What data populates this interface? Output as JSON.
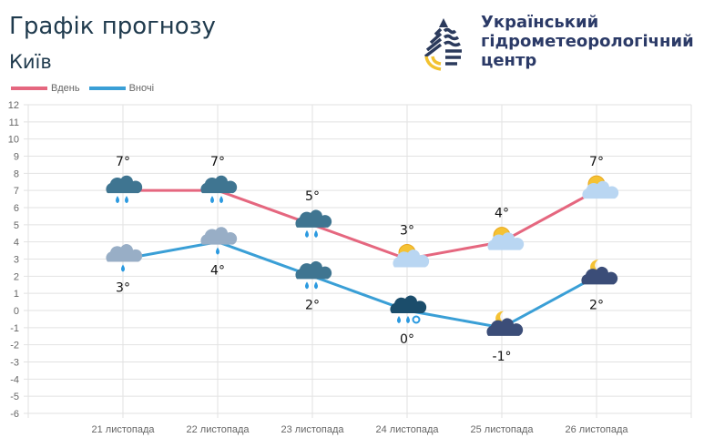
{
  "header": {
    "title": "Графік прогнозу",
    "city": "Київ",
    "org_lines": [
      "Український",
      "гідрометеорологічний",
      "центр"
    ]
  },
  "colors": {
    "day": "#e5677f",
    "night": "#3a9fd6",
    "logo_navy": "#2b3a5c",
    "logo_yellow": "#f2c230"
  },
  "chart_data": {
    "type": "line",
    "categories": [
      "21 листопада",
      "22 листопада",
      "23 листопада",
      "24 листопада",
      "25 листопада",
      "26 листопада"
    ],
    "series": [
      {
        "name": "Вдень",
        "values": [
          7,
          7,
          5,
          3,
          4,
          7
        ],
        "labels": [
          "7°",
          "7°",
          "5°",
          "3°",
          "4°",
          "7°"
        ],
        "icons": [
          "rain-cloud-icon",
          "rain-cloud-icon",
          "rain-cloud-icon",
          "sun-cloud-icon",
          "sun-cloud-icon",
          "sun-cloud-icon"
        ]
      },
      {
        "name": "Вночі",
        "values": [
          3,
          4,
          2,
          0,
          -1,
          2
        ],
        "labels": [
          "3°",
          "4°",
          "2°",
          "0°",
          "-1°",
          "2°"
        ],
        "icons": [
          "light-rain-cloud-icon",
          "light-rain-cloud-icon",
          "rain-cloud-icon",
          "rain-snow-cloud-icon",
          "moon-cloud-icon",
          "moon-cloud-icon"
        ]
      }
    ],
    "ylim": [
      -6,
      12
    ],
    "yticks": [
      "12",
      "11",
      "10",
      "9",
      "8",
      "7",
      "6",
      "5",
      "4",
      "3",
      "2",
      "1",
      "0",
      "-1",
      "-2",
      "-3",
      "-4",
      "-5",
      "-6"
    ],
    "grid": true,
    "legend": "top-left"
  }
}
